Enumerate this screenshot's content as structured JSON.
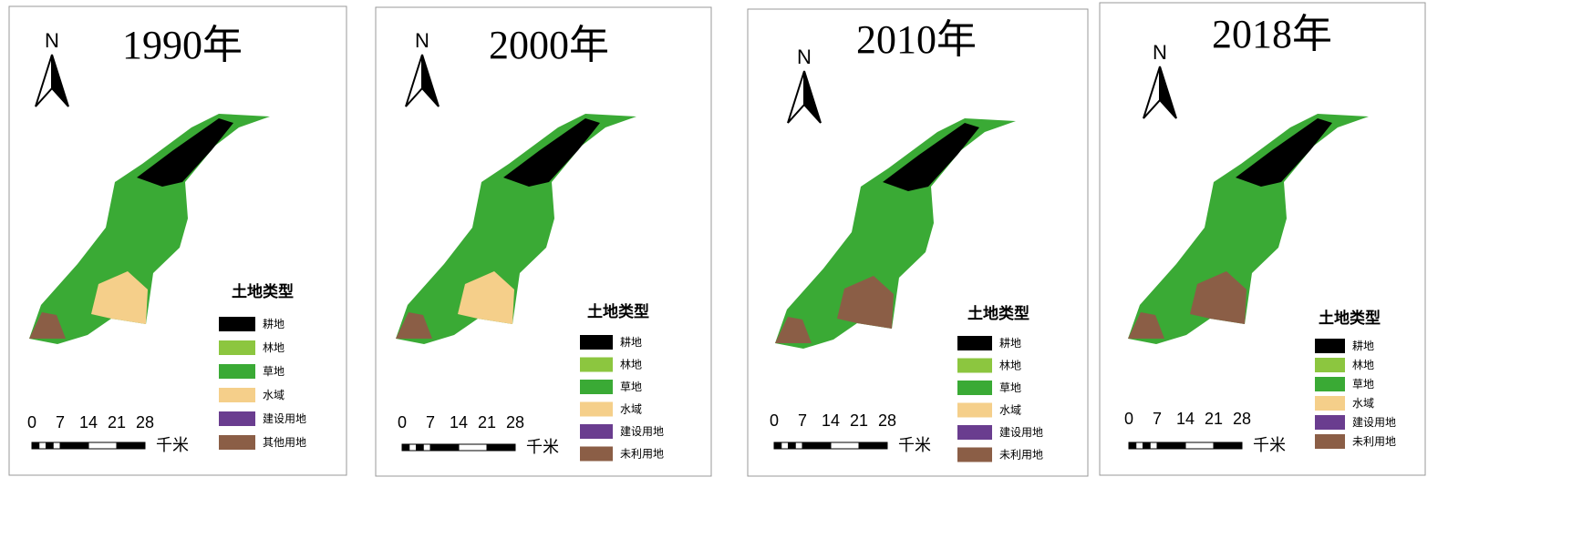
{
  "panels": [
    {
      "title": "1990年",
      "north": "N",
      "legend_title": "土地类型",
      "legend": [
        {
          "label": "耕地",
          "color": "#000000"
        },
        {
          "label": "林地",
          "color": "#8cc63f"
        },
        {
          "label": "草地",
          "color": "#3aaa35"
        },
        {
          "label": "水域",
          "color": "#f5cf8a"
        },
        {
          "label": "建设用地",
          "color": "#6a3d8f"
        },
        {
          "label": "其他用地",
          "color": "#8b5e46"
        }
      ],
      "scale_labels": [
        0,
        7,
        14,
        21,
        28
      ],
      "scale_unit": "千米"
    },
    {
      "title": "2000年",
      "north": "N",
      "legend_title": "土地类型",
      "legend": [
        {
          "label": "耕地",
          "color": "#000000"
        },
        {
          "label": "林地",
          "color": "#8cc63f"
        },
        {
          "label": "草地",
          "color": "#3aaa35"
        },
        {
          "label": "水域",
          "color": "#f5cf8a"
        },
        {
          "label": "建设用地",
          "color": "#6a3d8f"
        },
        {
          "label": "未利用地",
          "color": "#8b5e46"
        }
      ],
      "scale_labels": [
        0,
        7,
        14,
        21,
        28
      ],
      "scale_unit": "千米"
    },
    {
      "title": "2010年",
      "north": "N",
      "legend_title": "土地类型",
      "legend": [
        {
          "label": "耕地",
          "color": "#000000"
        },
        {
          "label": "林地",
          "color": "#8cc63f"
        },
        {
          "label": "草地",
          "color": "#3aaa35"
        },
        {
          "label": "水域",
          "color": "#f5cf8a"
        },
        {
          "label": "建设用地",
          "color": "#6a3d8f"
        },
        {
          "label": "未利用地",
          "color": "#8b5e46"
        }
      ],
      "scale_labels": [
        0,
        7,
        14,
        21,
        28
      ],
      "scale_unit": "千米"
    },
    {
      "title": "2018年",
      "north": "N",
      "legend_title": "土地类型",
      "legend": [
        {
          "label": "耕地",
          "color": "#000000"
        },
        {
          "label": "林地",
          "color": "#8cc63f"
        },
        {
          "label": "草地",
          "color": "#3aaa35"
        },
        {
          "label": "水域",
          "color": "#f5cf8a"
        },
        {
          "label": "建设用地",
          "color": "#6a3d8f"
        },
        {
          "label": "未利用地",
          "color": "#8b5e46"
        }
      ],
      "scale_labels": [
        0,
        7,
        14,
        21,
        28
      ],
      "scale_unit": "千米"
    }
  ]
}
